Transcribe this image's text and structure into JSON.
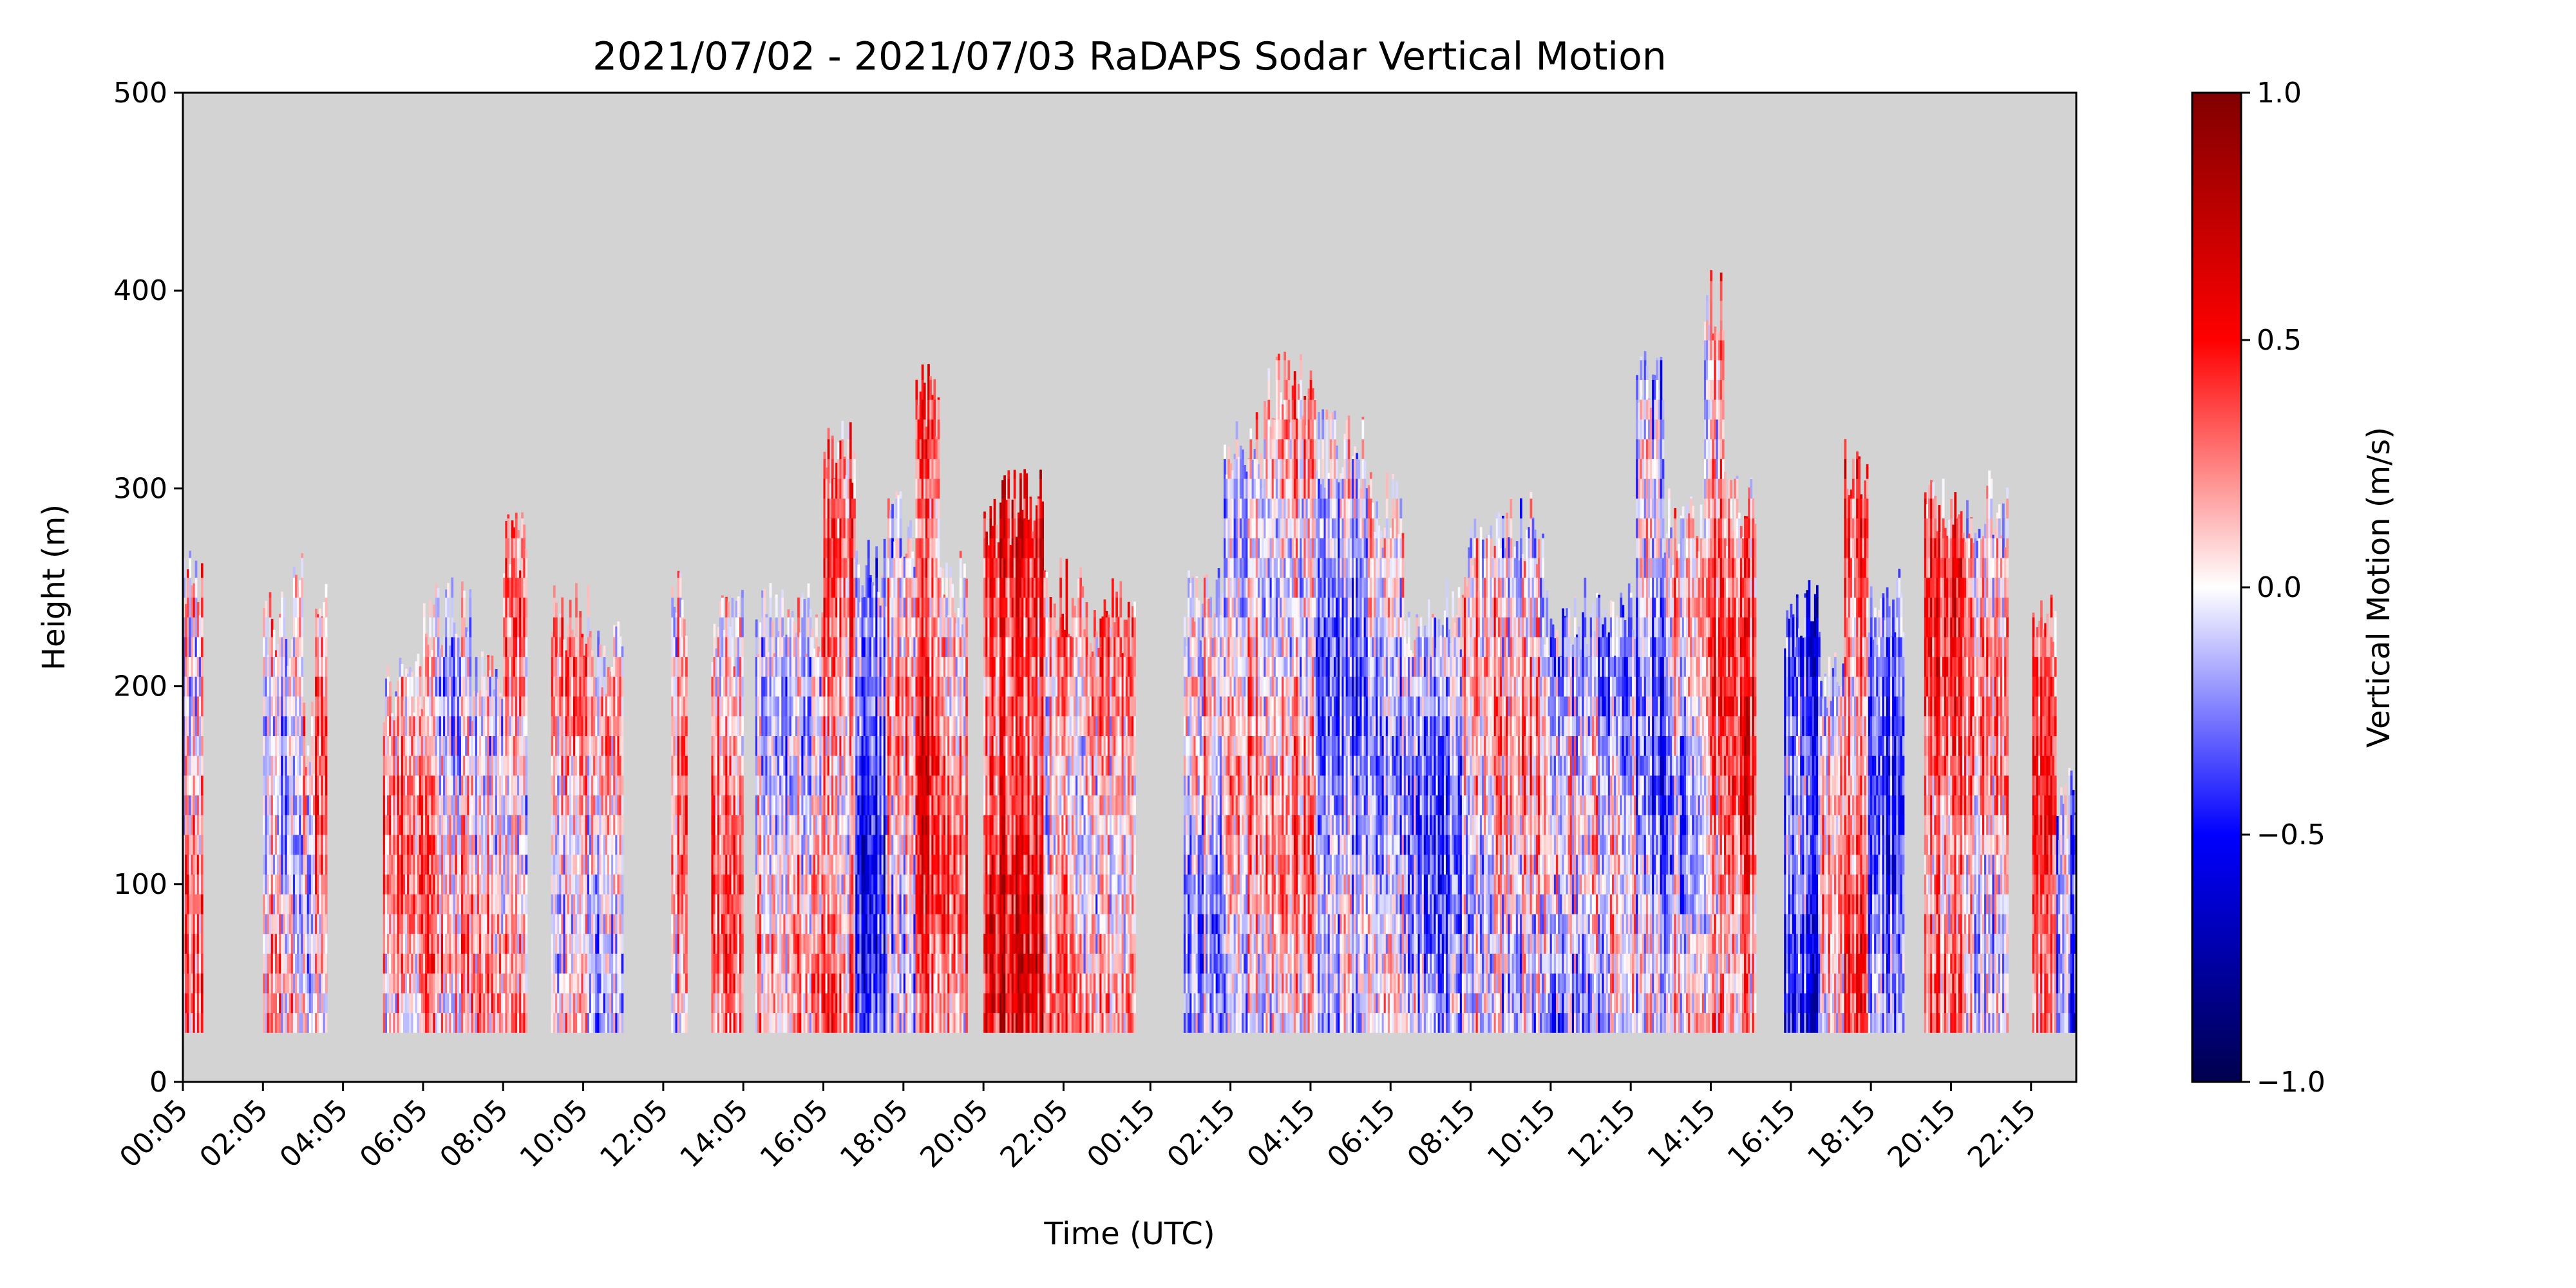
{
  "chart_data": {
    "type": "heatmap",
    "title": "2021/07/02 - 2021/07/03 RaDAPS Sodar Vertical Motion",
    "xlabel": "Time (UTC)",
    "ylabel": "Height (m)",
    "ylim": [
      0,
      500
    ],
    "y_ticks": [
      0,
      100,
      200,
      300,
      400,
      500
    ],
    "x_tick_labels": [
      "00:05",
      "02:05",
      "04:05",
      "06:05",
      "08:05",
      "10:05",
      "12:05",
      "14:05",
      "16:05",
      "18:05",
      "20:05",
      "22:05",
      "00:15",
      "02:15",
      "04:15",
      "06:15",
      "08:15",
      "10:15",
      "12:15",
      "14:15",
      "16:15",
      "18:15",
      "20:15",
      "22:15"
    ],
    "x_hours_elapsed_range": [
      0,
      47.3
    ],
    "x_tick_hours_elapsed": [
      0,
      2,
      4,
      6,
      8,
      10,
      12,
      14,
      16,
      18,
      20,
      22,
      24.17,
      26.17,
      28.17,
      30.17,
      32.17,
      34.17,
      36.17,
      38.17,
      40.17,
      42.17,
      44.17,
      46.17
    ],
    "colorbar": {
      "label": "Vertical Motion (m/s)",
      "ticks": [
        1.0,
        0.5,
        0.0,
        -0.5,
        -1.0
      ],
      "tick_labels": [
        "1.0",
        "0.5",
        "0.0",
        "−0.5",
        "−1.0"
      ],
      "range": [
        -1.0,
        1.0
      ],
      "colormap": "seismic"
    },
    "missing_color": "#d3d3d3",
    "min_height": 25,
    "data_segments": [
      {
        "t": [
          0.0,
          0.5
        ],
        "top": 250,
        "bias": 0.15
      },
      {
        "t": [
          2.0,
          2.75
        ],
        "top": 230,
        "bias": 0.05
      },
      {
        "t": [
          2.75,
          3.0
        ],
        "top": 265,
        "bias": -0.15
      },
      {
        "t": [
          3.0,
          3.6
        ],
        "top": 175,
        "bias": 0.05
      },
      {
        "t": [
          3.3,
          3.6
        ],
        "top": 235,
        "bias": 0.15
      },
      {
        "t": [
          5.0,
          6.0
        ],
        "top": 200,
        "bias": 0.15
      },
      {
        "t": [
          6.0,
          7.2
        ],
        "top": 235,
        "bias": 0.05
      },
      {
        "t": [
          7.2,
          8.0
        ],
        "top": 200,
        "bias": 0.1
      },
      {
        "t": [
          8.0,
          8.6
        ],
        "top": 270,
        "bias": 0.1
      },
      {
        "t": [
          9.2,
          10.2
        ],
        "top": 235,
        "bias": 0.1
      },
      {
        "t": [
          10.2,
          11.0
        ],
        "top": 215,
        "bias": 0.05
      },
      {
        "t": [
          12.2,
          12.6
        ],
        "top": 240,
        "bias": 0.15
      },
      {
        "t": [
          13.2,
          14.0
        ],
        "top": 230,
        "bias": 0.2
      },
      {
        "t": [
          14.3,
          16.0
        ],
        "top": 235,
        "bias": 0.05
      },
      {
        "t": [
          16.0,
          16.8
        ],
        "top": 320,
        "bias": 0.2
      },
      {
        "t": [
          16.8,
          17.6
        ],
        "top": 260,
        "bias": -0.3
      },
      {
        "t": [
          17.6,
          18.3
        ],
        "top": 280,
        "bias": 0.05
      },
      {
        "t": [
          18.3,
          18.9
        ],
        "top": 345,
        "bias": 0.35
      },
      {
        "t": [
          18.9,
          19.6
        ],
        "top": 250,
        "bias": 0.2
      },
      {
        "t": [
          20.0,
          21.5
        ],
        "top": 290,
        "bias": 0.45
      },
      {
        "t": [
          21.5,
          22.5
        ],
        "top": 245,
        "bias": 0.15
      },
      {
        "t": [
          22.5,
          23.8
        ],
        "top": 235,
        "bias": 0.1
      },
      {
        "t": [
          25.0,
          26.0
        ],
        "top": 240,
        "bias": -0.05
      },
      {
        "t": [
          26.0,
          27.0
        ],
        "top": 320,
        "bias": 0.1
      },
      {
        "t": [
          27.0,
          28.3
        ],
        "top": 350,
        "bias": 0.1
      },
      {
        "t": [
          28.3,
          29.6
        ],
        "top": 320,
        "bias": -0.2
      },
      {
        "t": [
          29.6,
          30.5
        ],
        "top": 290,
        "bias": -0.05
      },
      {
        "t": [
          30.5,
          32.0
        ],
        "top": 235,
        "bias": -0.15
      },
      {
        "t": [
          32.0,
          32.8
        ],
        "top": 265,
        "bias": 0.05
      },
      {
        "t": [
          32.8,
          34.0
        ],
        "top": 280,
        "bias": 0.05
      },
      {
        "t": [
          34.0,
          35.5
        ],
        "top": 235,
        "bias": -0.1
      },
      {
        "t": [
          35.5,
          36.3
        ],
        "top": 235,
        "bias": -0.1
      },
      {
        "t": [
          36.3,
          37.0
        ],
        "top": 360,
        "bias": -0.2
      },
      {
        "t": [
          37.0,
          38.0
        ],
        "top": 280,
        "bias": 0.0
      },
      {
        "t": [
          38.0,
          38.5
        ],
        "top": 395,
        "bias": 0.2
      },
      {
        "t": [
          38.5,
          39.3
        ],
        "top": 290,
        "bias": 0.3
      },
      {
        "t": [
          40.0,
          40.9
        ],
        "top": 235,
        "bias": -0.35
      },
      {
        "t": [
          40.9,
          41.5
        ],
        "top": 200,
        "bias": 0.05
      },
      {
        "t": [
          41.5,
          42.1
        ],
        "top": 305,
        "bias": 0.35
      },
      {
        "t": [
          42.1,
          43.0
        ],
        "top": 240,
        "bias": -0.3
      },
      {
        "t": [
          43.5,
          44.5
        ],
        "top": 285,
        "bias": 0.3
      },
      {
        "t": [
          44.5,
          45.6
        ],
        "top": 290,
        "bias": 0.1
      },
      {
        "t": [
          46.2,
          46.8
        ],
        "top": 230,
        "bias": 0.25
      },
      {
        "t": [
          46.8,
          47.3
        ],
        "top": 140,
        "bias": -0.3
      }
    ]
  }
}
